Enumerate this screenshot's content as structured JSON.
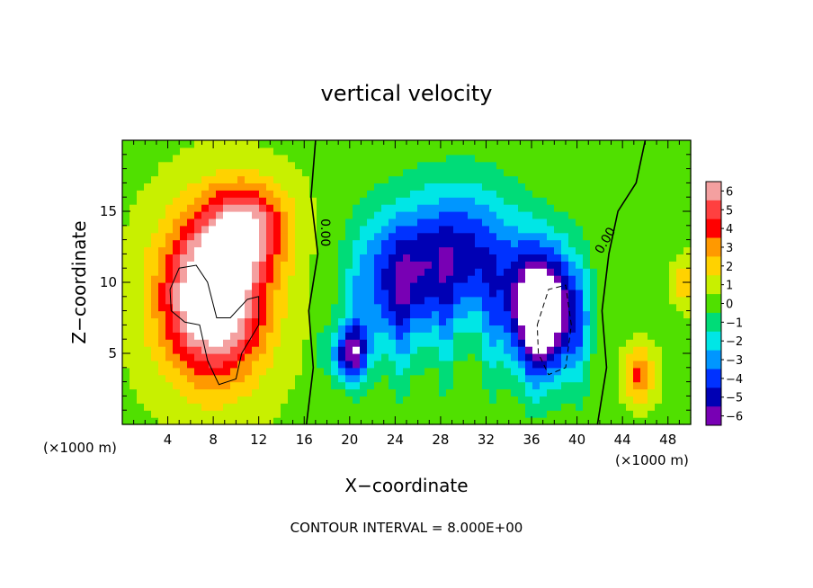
{
  "chart_data": {
    "type": "heatmap",
    "title": "vertical velocity",
    "xlabel": "X−coordinate",
    "ylabel": "Z−coordinate",
    "x_unit_left": "(×1000 m)",
    "x_unit_right": "(×1000 m)",
    "xlim": [
      0,
      50
    ],
    "ylim": [
      0,
      20
    ],
    "xticks": [
      4,
      8,
      12,
      16,
      20,
      24,
      28,
      32,
      36,
      40,
      44,
      48
    ],
    "yticks": [
      5,
      10,
      15
    ],
    "colorbar": {
      "levels": [
        6,
        5,
        4,
        3,
        2,
        1,
        0,
        -1,
        -2,
        -3,
        -4,
        -5,
        -6
      ],
      "labels": [
        "6",
        "5",
        "4",
        "3",
        "2",
        "1",
        "0",
        "−1",
        "−2",
        "−3",
        "−4",
        "−5",
        "−6"
      ],
      "colors": [
        "#f4a0a0",
        "#ff4040",
        "#ff0000",
        "#ff9900",
        "#ffd200",
        "#c8f000",
        "#50e000",
        "#00dc78",
        "#00e6e6",
        "#0096ff",
        "#0032ff",
        "#0000b4",
        "#7800b4"
      ]
    },
    "contour_labels": [
      "0.00",
      "0.00"
    ],
    "contour_interval_text": "CONTOUR INTERVAL = 8.000E+00",
    "regions": [
      {
        "name": "updraft-left",
        "x": 8,
        "z": 9,
        "sx": 4.5,
        "sz": 5.5,
        "w": 9
      },
      {
        "name": "updraft-left-top",
        "x": 11,
        "z": 14,
        "sx": 3.5,
        "sz": 3,
        "w": 5
      },
      {
        "name": "downdraft-right",
        "x": 37,
        "z": 8,
        "sx": 3.2,
        "sz": 4.5,
        "w": -9
      },
      {
        "name": "downdraft-mid",
        "x": 30,
        "z": 12,
        "sx": 5,
        "sz": 5,
        "w": -5
      },
      {
        "name": "downdraft-center",
        "x": 24,
        "z": 10,
        "sx": 4,
        "sz": 5,
        "w": -4.5
      },
      {
        "name": "downdraft-low",
        "x": 20,
        "z": 5,
        "sx": 1.6,
        "sz": 2,
        "w": -5.5
      },
      {
        "name": "updraft-right-low",
        "x": 45.5,
        "z": 3.5,
        "sx": 1.2,
        "sz": 1.8,
        "w": 3.5
      },
      {
        "name": "updraft-right-edge",
        "x": 49.5,
        "z": 10,
        "sx": 1,
        "sz": 1.5,
        "w": 2
      }
    ]
  }
}
